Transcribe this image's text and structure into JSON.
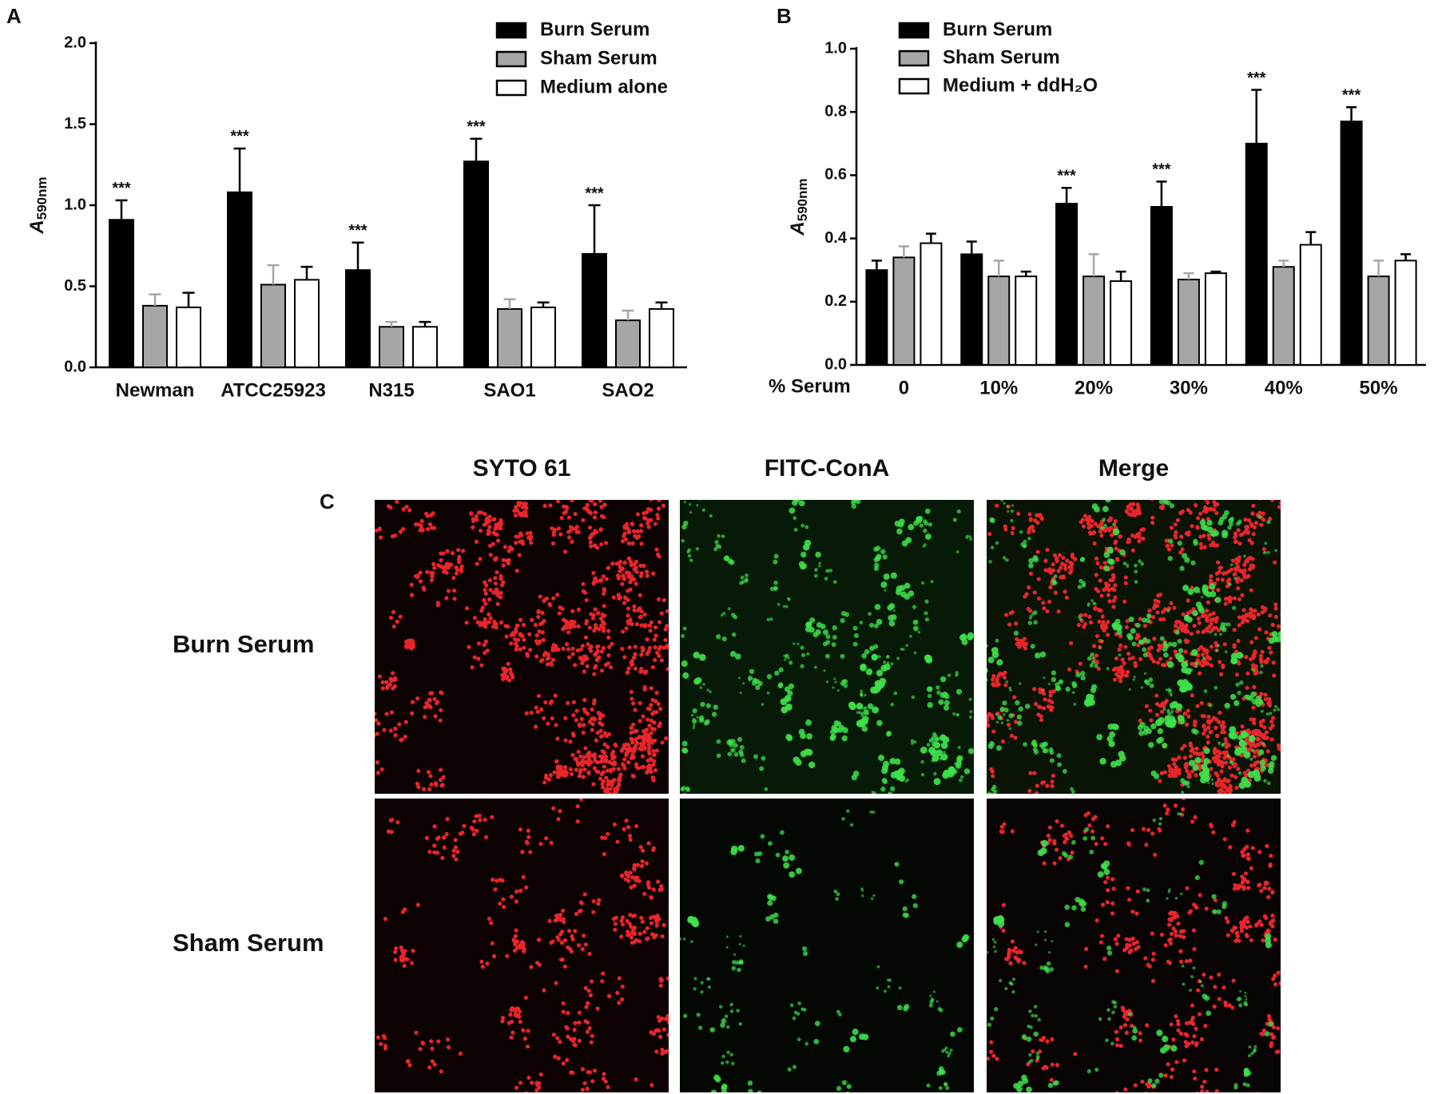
{
  "chart_data": [
    {
      "type": "bar",
      "panel": "A",
      "ylabel": "A",
      "ylabel_subscript": "590nm",
      "categories": [
        "Newman",
        "ATCC25923",
        "N315",
        "SAO1",
        "SAO2"
      ],
      "series": [
        {
          "name": "Burn Serum",
          "color": "#000000",
          "values": [
            0.91,
            1.08,
            0.6,
            1.27,
            0.7
          ],
          "errors": [
            0.12,
            0.27,
            0.17,
            0.14,
            0.3
          ],
          "annotations": [
            "***",
            "***",
            "***",
            "***",
            "***"
          ]
        },
        {
          "name": "Sham Serum",
          "color": "#a6a6a6",
          "values": [
            0.38,
            0.51,
            0.25,
            0.36,
            0.29
          ],
          "errors": [
            0.07,
            0.12,
            0.03,
            0.06,
            0.06
          ]
        },
        {
          "name": "Medium alone",
          "color": "#ffffff",
          "values": [
            0.37,
            0.54,
            0.25,
            0.37,
            0.36
          ],
          "errors": [
            0.09,
            0.08,
            0.03,
            0.03,
            0.04
          ]
        }
      ],
      "ylim": [
        0,
        2
      ],
      "yticks": [
        {
          "value": 0,
          "label": "0.0"
        },
        0.5,
        {
          "value": 1,
          "label": "1.0"
        },
        1.5,
        {
          "value": 2,
          "label": "2.0"
        }
      ]
    },
    {
      "type": "bar",
      "panel": "B",
      "ylabel": "A",
      "ylabel_subscript": "590nm",
      "xlabel": "% Serum",
      "categories": [
        "0",
        "10%",
        "20%",
        "30%",
        "40%",
        "50%"
      ],
      "series": [
        {
          "name": "Burn Serum",
          "color": "#000000",
          "values": [
            0.3,
            0.35,
            0.51,
            0.5,
            0.7,
            0.77
          ],
          "errors": [
            0.03,
            0.04,
            0.05,
            0.08,
            0.17,
            0.045
          ],
          "annotations": [
            null,
            null,
            "***",
            "***",
            "***",
            "***"
          ]
        },
        {
          "name": "Sham Serum",
          "color": "#a6a6a6",
          "values": [
            0.34,
            0.28,
            0.28,
            0.27,
            0.31,
            0.28
          ],
          "errors": [
            0.035,
            0.05,
            0.07,
            0.02,
            0.02,
            0.05
          ]
        },
        {
          "name": "Medium + ddH₂O",
          "color": "#ffffff",
          "values": [
            0.385,
            0.28,
            0.265,
            0.29,
            0.38,
            0.33
          ],
          "errors": [
            0.03,
            0.015,
            0.03,
            0.005,
            0.04,
            0.02
          ]
        }
      ],
      "ylim": [
        0,
        1
      ],
      "yticks": [
        {
          "value": 0,
          "label": "0.0"
        },
        0.2,
        0.4,
        0.6,
        0.8,
        {
          "value": 1,
          "label": "1.0"
        }
      ]
    }
  ],
  "panel_c": {
    "panel": "C",
    "columns": [
      "SYTO 61",
      "FITC-ConA",
      "Merge"
    ],
    "rows": [
      "Burn Serum",
      "Sham Serum"
    ]
  }
}
